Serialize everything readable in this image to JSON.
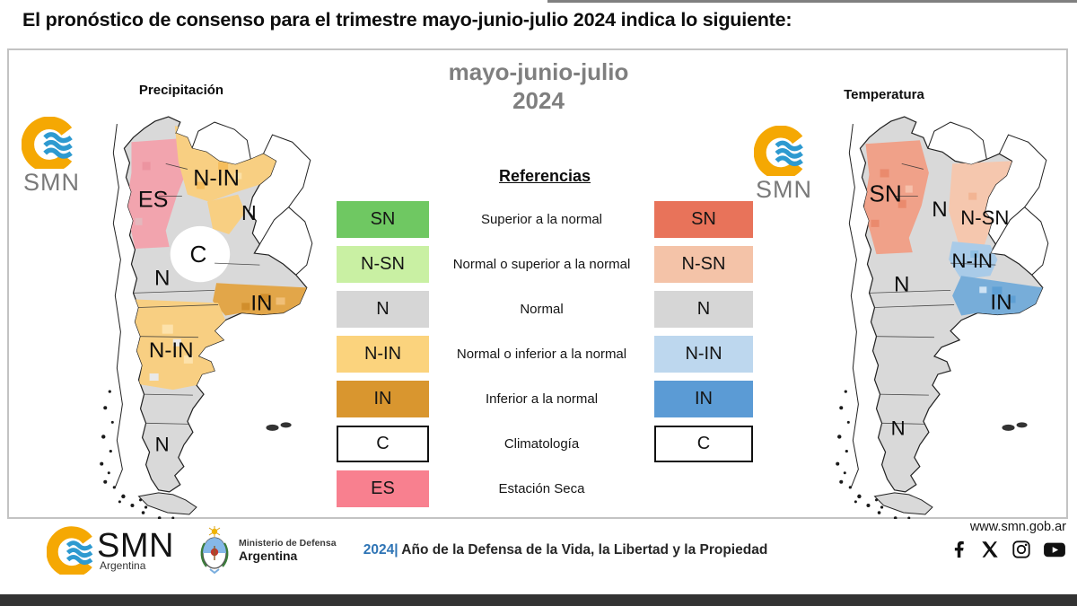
{
  "page_title": "El pronóstico de consenso para el trimestre mayo-junio-julio 2024 indica lo siguiente:",
  "panel": {
    "period_line1": "mayo-junio-julio",
    "period_line2": "2024"
  },
  "brand": {
    "orange": "#F5A803",
    "wave_blue": "#2E9AD0",
    "accent_blue": "#2E74B5",
    "footer_bar": "#333333"
  },
  "maps": {
    "precipitation": {
      "title": "Precipitación",
      "logo_text": "SMN",
      "labels": [
        {
          "text": "ES"
        },
        {
          "text": "N-IN"
        },
        {
          "text": "N"
        },
        {
          "text": "C"
        },
        {
          "text": "N"
        },
        {
          "text": "IN"
        },
        {
          "text": "N-IN"
        },
        {
          "text": "N"
        }
      ],
      "region_colors": {
        "base": "#d9d9d9",
        "es": "#f2a4ae",
        "nin": "#f8cf82",
        "in": "#e2a649",
        "c": "#ffffff"
      }
    },
    "temperature": {
      "title": "Temperatura",
      "logo_text": "SMN",
      "labels": [
        {
          "text": "SN"
        },
        {
          "text": "N"
        },
        {
          "text": "N-SN"
        },
        {
          "text": "N-IN"
        },
        {
          "text": "IN"
        },
        {
          "text": "N"
        },
        {
          "text": "N"
        }
      ],
      "region_colors": {
        "base": "#d9d9d9",
        "sn": "#f0a189",
        "nsn": "#f5c7ae",
        "nin": "#a9cbe8",
        "in": "#77add9"
      }
    }
  },
  "legend": {
    "title": "Referencias",
    "rows": [
      {
        "left_label": "SN",
        "left_color": "#6fc862",
        "desc": "Superior a la normal",
        "right_label": "SN",
        "right_color": "#e8735a"
      },
      {
        "left_label": "N-SN",
        "left_color": "#c9f0a3",
        "desc": "Normal o superior a la normal",
        "right_label": "N-SN",
        "right_color": "#f4c3a8"
      },
      {
        "left_label": "N",
        "left_color": "#d6d6d6",
        "desc": "Normal",
        "right_label": "N",
        "right_color": "#d6d6d6"
      },
      {
        "left_label": "N-IN",
        "left_color": "#fbd37d",
        "desc": "Normal o inferior a la normal",
        "right_label": "N-IN",
        "right_color": "#bdd7ee"
      },
      {
        "left_label": "IN",
        "left_color": "#d9962f",
        "desc": "Inferior a la normal",
        "right_label": "IN",
        "right_color": "#5b9bd5"
      },
      {
        "left_label": "C",
        "left_color": "#ffffff",
        "left_border": true,
        "desc": "Climatología",
        "right_label": "C",
        "right_color": "#ffffff",
        "right_border": true
      },
      {
        "left_label": "ES",
        "left_color": "#f8808f",
        "desc": "Estación Seca",
        "right_label": null,
        "right_color": null
      }
    ]
  },
  "footer": {
    "smn_name": "SMN",
    "smn_country": "Argentina",
    "ministry_line1": "Ministerio de Defensa",
    "ministry_line2": "Argentina",
    "year": "2024|",
    "slogan": " Año de la Defensa de la Vida, la Libertad y la Propiedad",
    "website": "www.smn.gob.ar",
    "social_icons": [
      "facebook-icon",
      "x-icon",
      "instagram-icon",
      "youtube-icon"
    ]
  }
}
